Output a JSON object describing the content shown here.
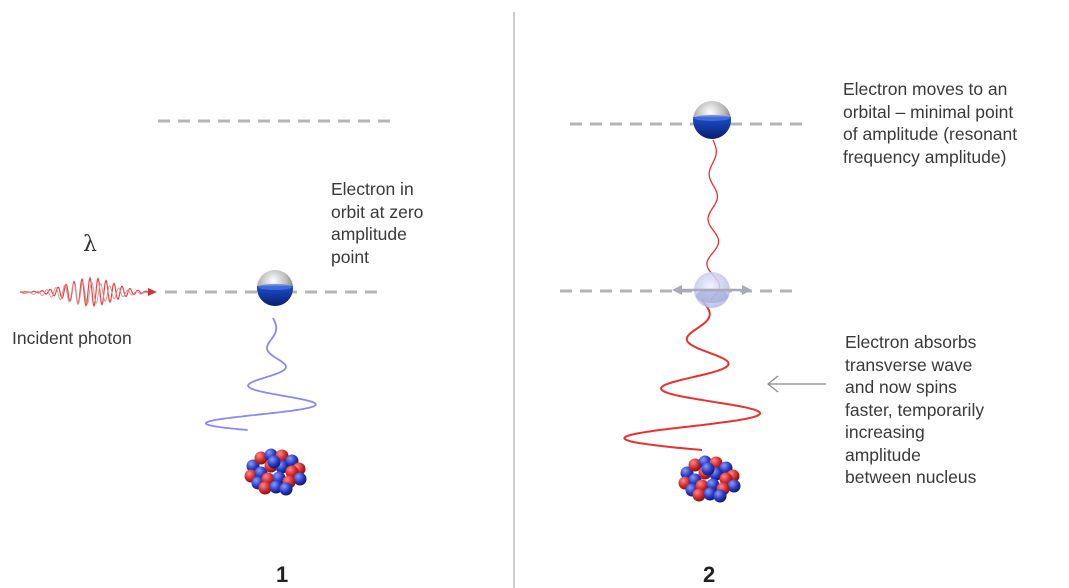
{
  "lambda_symbol": "λ",
  "panel1": {
    "number": "1",
    "photon_label": "Incident photon",
    "electron_label_lines": [
      "Electron in",
      "orbit at zero",
      "amplitude",
      "point"
    ]
  },
  "panel2": {
    "number": "2",
    "orbital_label_lines": [
      "Electron moves to an",
      "orbital –  minimal point",
      "of amplitude (resonant",
      "frequency amplitude)"
    ],
    "absorb_label_lines": [
      "Electron absorbs",
      "transverse wave",
      "and now spins",
      "faster, temporarily",
      "increasing",
      "amplitude",
      "between nucleus"
    ]
  },
  "colors": {
    "dashed_line": "#b5b5b5",
    "divider": "#bdbdbd",
    "wave_panel1": "#8a8af0",
    "wave_panel2": "#e8322f",
    "photon_wave": "#d94a4a",
    "proton": "#d42a2a",
    "neutron": "#2a3cc4",
    "electron_blue": "#0d2f9a",
    "arrow": "#888888"
  }
}
